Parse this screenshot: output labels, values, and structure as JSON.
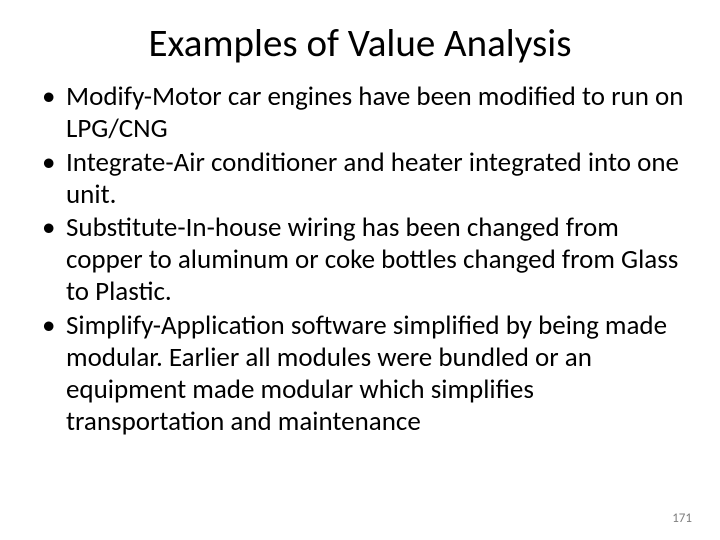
{
  "slide": {
    "title": "Examples of Value Analysis",
    "bullets": [
      "Modify-Motor car engines have been modified to run on LPG/CNG",
      "Integrate-Air conditioner and heater integrated into one unit.",
      "Substitute-In-house wiring has been changed from copper to aluminum or coke bottles changed from Glass to Plastic.",
      "Simplify-Application software simplified by being made modular.  Earlier all modules were bundled or an equipment made modular which simplifies transportation and maintenance"
    ],
    "page_number": "171"
  },
  "style": {
    "background_color": "#ffffff",
    "text_color": "#000000",
    "page_number_color": "#808080",
    "title_fontsize": 39,
    "body_fontsize": 27,
    "pagenum_fontsize": 13,
    "font_family": "Calibri"
  }
}
